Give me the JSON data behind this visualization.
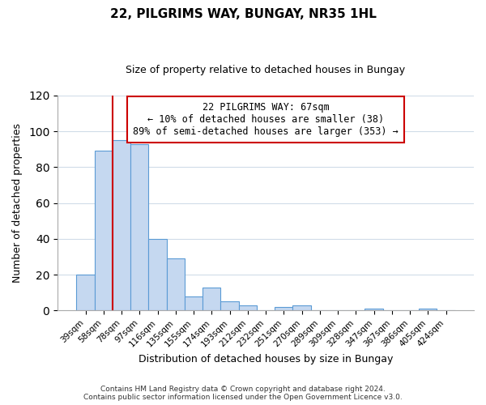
{
  "title": "22, PILGRIMS WAY, BUNGAY, NR35 1HL",
  "subtitle": "Size of property relative to detached houses in Bungay",
  "xlabel": "Distribution of detached houses by size in Bungay",
  "ylabel": "Number of detached properties",
  "bar_labels": [
    "39sqm",
    "58sqm",
    "78sqm",
    "97sqm",
    "116sqm",
    "135sqm",
    "155sqm",
    "174sqm",
    "193sqm",
    "212sqm",
    "232sqm",
    "251sqm",
    "270sqm",
    "289sqm",
    "309sqm",
    "328sqm",
    "347sqm",
    "367sqm",
    "386sqm",
    "405sqm",
    "424sqm"
  ],
  "bar_values": [
    20,
    89,
    95,
    93,
    40,
    29,
    8,
    13,
    5,
    3,
    0,
    2,
    3,
    0,
    0,
    0,
    1,
    0,
    0,
    1,
    0
  ],
  "bar_color": "#c5d8f0",
  "bar_edge_color": "#5b9bd5",
  "vline_x": 1.5,
  "vline_color": "#cc0000",
  "annotation_line1": "22 PILGRIMS WAY: 67sqm",
  "annotation_line2": "← 10% of detached houses are smaller (38)",
  "annotation_line3": "89% of semi-detached houses are larger (353) →",
  "annotation_box_color": "#ffffff",
  "annotation_box_edge": "#cc0000",
  "ylim": [
    0,
    120
  ],
  "yticks": [
    0,
    20,
    40,
    60,
    80,
    100,
    120
  ],
  "footer_line1": "Contains HM Land Registry data © Crown copyright and database right 2024.",
  "footer_line2": "Contains public sector information licensed under the Open Government Licence v3.0.",
  "background_color": "#ffffff",
  "grid_color": "#d0dce8"
}
